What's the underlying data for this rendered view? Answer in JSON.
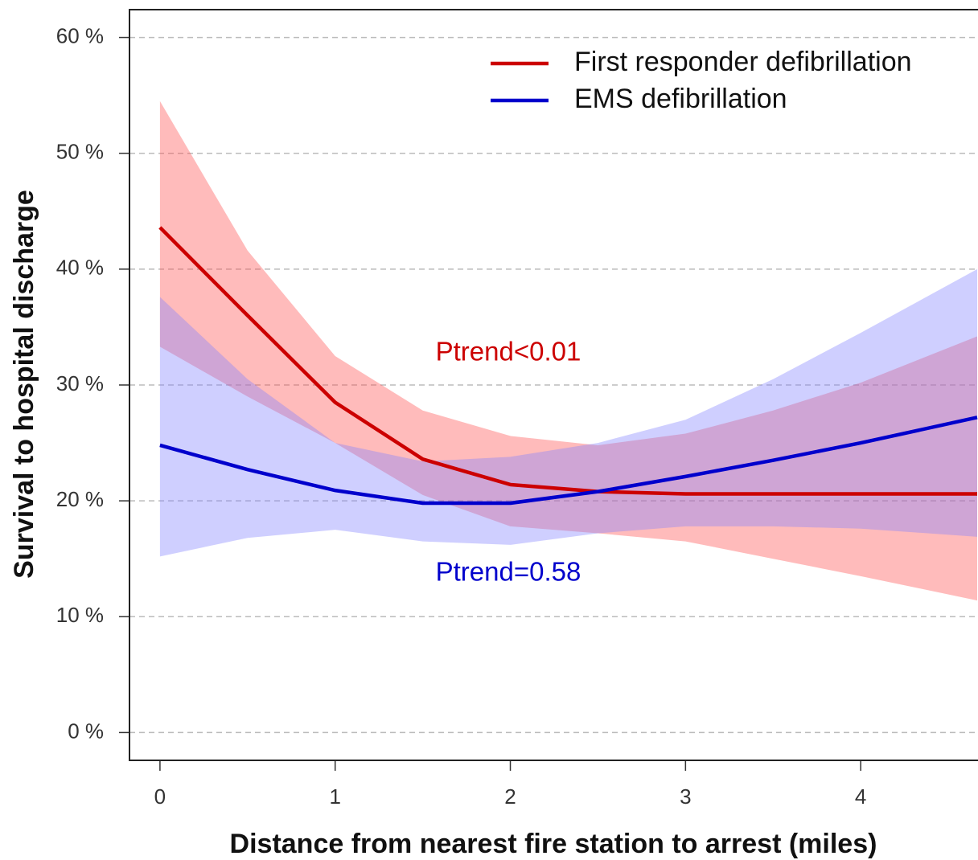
{
  "chart_data": {
    "type": "line",
    "xlabel": "Distance from nearest fire station to arrest (miles)",
    "ylabel": "Survival to hospital discharge",
    "x": [
      0,
      0.5,
      1,
      1.5,
      2,
      2.5,
      3,
      3.5,
      4,
      4.665
    ],
    "series": [
      {
        "name": "First responder defibrillation",
        "color": "#cc0000",
        "band_color": "#ff4d4d",
        "values": [
          43.6,
          36,
          28.5,
          23.6,
          21.4,
          20.8,
          20.6,
          20.6,
          20.6,
          20.6
        ],
        "upper": [
          54.5,
          41.6,
          32.5,
          27.8,
          25.6,
          24.8,
          25.8,
          27.8,
          30.2,
          34.2
        ],
        "lower": [
          33.3,
          29,
          25,
          20.5,
          17.8,
          17.2,
          16.5,
          15,
          13.5,
          11.4
        ]
      },
      {
        "name": "EMS defibrillation",
        "color": "#0000cc",
        "band_color": "#8080ff",
        "values": [
          24.8,
          22.7,
          20.9,
          19.8,
          19.8,
          20.8,
          22.1,
          23.5,
          25,
          27.2
        ],
        "upper": [
          37.6,
          30.5,
          25,
          23.4,
          23.8,
          25,
          27,
          30.5,
          34.5,
          40
        ],
        "lower": [
          15.2,
          16.8,
          17.5,
          16.5,
          16.2,
          17.2,
          17.8,
          17.8,
          17.6,
          16.9
        ]
      }
    ],
    "annotations": [
      {
        "text": "Ptrend<0.01",
        "color": "#cc0000"
      },
      {
        "text": "Ptrend=0.58",
        "color": "#0000cc"
      }
    ],
    "xlim": [
      -0.174,
      4.665
    ],
    "ylim": [
      -2.4,
      62.4
    ],
    "xticks": [
      0,
      1,
      2,
      3,
      4
    ],
    "yticks": [
      {
        "value": 0,
        "label": "0 %"
      },
      {
        "value": 10,
        "label": "10 %"
      },
      {
        "value": 20,
        "label": "20 %"
      },
      {
        "value": 30,
        "label": "30 %"
      },
      {
        "value": 40,
        "label": "40 %"
      },
      {
        "value": 50,
        "label": "50 %"
      },
      {
        "value": 60,
        "label": "60 %"
      }
    ],
    "grid": true,
    "legend": "top-right"
  }
}
